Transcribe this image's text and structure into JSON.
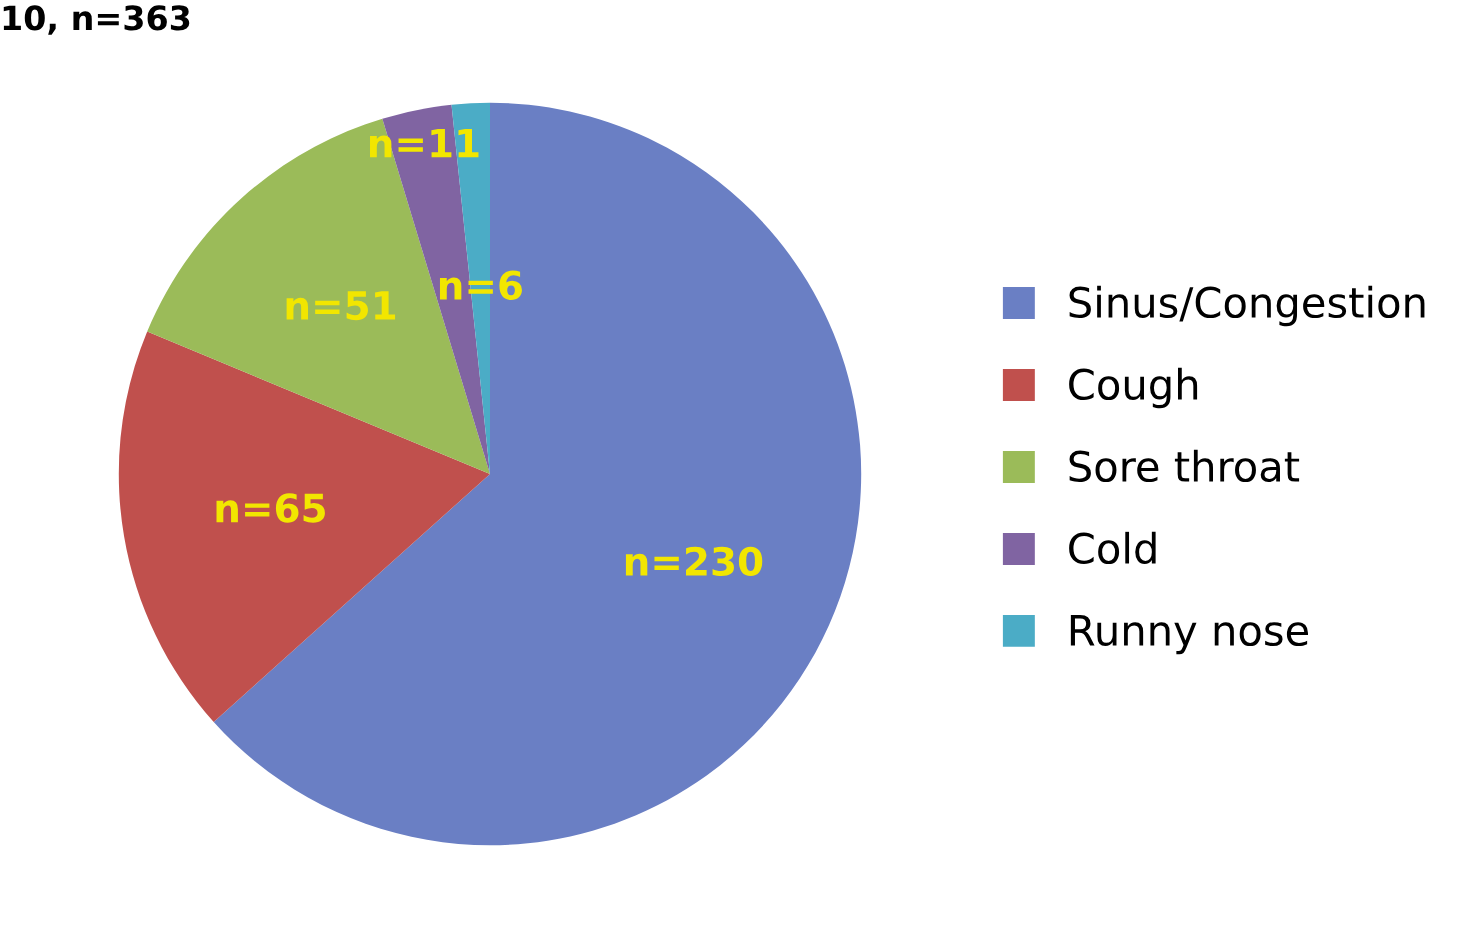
{
  "chart_data": {
    "type": "pie",
    "title": "10, n=363",
    "categories": [
      "Sinus/Congestion",
      "Cough",
      "Sore throat",
      "Cold",
      "Runny nose"
    ],
    "values": [
      230,
      65,
      51,
      11,
      6
    ],
    "colors": [
      "#6a7fc4",
      "#c0504d",
      "#9bbb59",
      "#8064a2",
      "#4bacc6"
    ],
    "value_labels": [
      "n=230",
      "n=65",
      "n=51",
      "n=11",
      "n=6"
    ],
    "legend": "right"
  }
}
